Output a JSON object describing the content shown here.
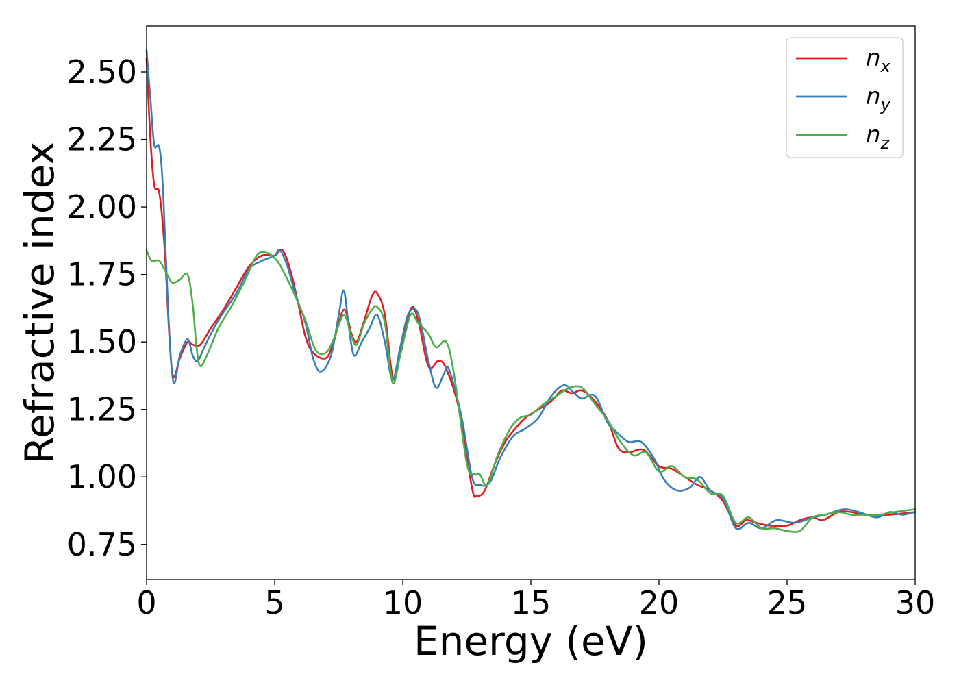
{
  "chart_data": {
    "type": "line",
    "xlabel": "Energy (eV)",
    "ylabel": "Refractive index",
    "xlim": [
      0,
      30
    ],
    "ylim": [
      0.62,
      2.67
    ],
    "xticks": [
      0,
      5,
      10,
      15,
      20,
      25,
      30
    ],
    "xtick_labels": [
      "0",
      "5",
      "10",
      "15",
      "20",
      "25",
      "30"
    ],
    "yticks": [
      0.75,
      1.0,
      1.25,
      1.5,
      1.75,
      2.0,
      2.25,
      2.5
    ],
    "ytick_labels": [
      "0.75",
      "1.00",
      "1.25",
      "1.50",
      "1.75",
      "2.00",
      "2.25",
      "2.50"
    ],
    "grid": false,
    "legend_position": "top-right",
    "series": [
      {
        "name": "n",
        "subscript": "x",
        "color": "#e41a1c",
        "points": [
          [
            0,
            2.55
          ],
          [
            0.15,
            2.25
          ],
          [
            0.3,
            2.08
          ],
          [
            0.5,
            2.05
          ],
          [
            0.7,
            1.85
          ],
          [
            0.9,
            1.5
          ],
          [
            1.05,
            1.37
          ],
          [
            1.3,
            1.44
          ],
          [
            1.6,
            1.5
          ],
          [
            1.8,
            1.49
          ],
          [
            2.1,
            1.49
          ],
          [
            2.5,
            1.55
          ],
          [
            3.0,
            1.62
          ],
          [
            3.5,
            1.7
          ],
          [
            4.0,
            1.78
          ],
          [
            4.5,
            1.82
          ],
          [
            5.0,
            1.82
          ],
          [
            5.3,
            1.84
          ],
          [
            5.6,
            1.77
          ],
          [
            5.9,
            1.65
          ],
          [
            6.2,
            1.52
          ],
          [
            6.5,
            1.46
          ],
          [
            7.0,
            1.44
          ],
          [
            7.3,
            1.5
          ],
          [
            7.7,
            1.62
          ],
          [
            8.0,
            1.53
          ],
          [
            8.2,
            1.5
          ],
          [
            8.5,
            1.58
          ],
          [
            8.8,
            1.67
          ],
          [
            9.0,
            1.68
          ],
          [
            9.3,
            1.6
          ],
          [
            9.6,
            1.37
          ],
          [
            9.8,
            1.42
          ],
          [
            10.3,
            1.62
          ],
          [
            10.6,
            1.58
          ],
          [
            11.0,
            1.41
          ],
          [
            11.4,
            1.43
          ],
          [
            11.7,
            1.4
          ],
          [
            12.2,
            1.25
          ],
          [
            12.7,
            0.96
          ],
          [
            12.9,
            0.93
          ],
          [
            13.2,
            0.95
          ],
          [
            13.6,
            1.05
          ],
          [
            14.0,
            1.13
          ],
          [
            14.4,
            1.18
          ],
          [
            14.8,
            1.22
          ],
          [
            15.3,
            1.25
          ],
          [
            15.8,
            1.28
          ],
          [
            16.2,
            1.32
          ],
          [
            16.6,
            1.31
          ],
          [
            17.0,
            1.32
          ],
          [
            17.5,
            1.28
          ],
          [
            18.0,
            1.21
          ],
          [
            18.4,
            1.11
          ],
          [
            18.8,
            1.09
          ],
          [
            19.4,
            1.1
          ],
          [
            20.0,
            1.04
          ],
          [
            20.5,
            1.03
          ],
          [
            21.0,
            1.0
          ],
          [
            21.5,
            0.97
          ],
          [
            22.0,
            0.95
          ],
          [
            22.5,
            0.91
          ],
          [
            23.0,
            0.82
          ],
          [
            23.4,
            0.84
          ],
          [
            23.8,
            0.83
          ],
          [
            24.3,
            0.82
          ],
          [
            25.0,
            0.82
          ],
          [
            25.5,
            0.84
          ],
          [
            26.0,
            0.85
          ],
          [
            26.4,
            0.84
          ],
          [
            27.0,
            0.87
          ],
          [
            27.5,
            0.87
          ],
          [
            28.0,
            0.86
          ],
          [
            29.0,
            0.86
          ],
          [
            30.0,
            0.87
          ]
        ]
      },
      {
        "name": "n",
        "subscript": "y",
        "color": "#377eb8",
        "points": [
          [
            0,
            2.58
          ],
          [
            0.15,
            2.4
          ],
          [
            0.3,
            2.23
          ],
          [
            0.5,
            2.22
          ],
          [
            0.65,
            2.05
          ],
          [
            0.85,
            1.6
          ],
          [
            1.05,
            1.35
          ],
          [
            1.3,
            1.45
          ],
          [
            1.6,
            1.51
          ],
          [
            1.8,
            1.45
          ],
          [
            2.0,
            1.43
          ],
          [
            2.3,
            1.49
          ],
          [
            2.8,
            1.58
          ],
          [
            3.5,
            1.68
          ],
          [
            4.0,
            1.77
          ],
          [
            4.5,
            1.8
          ],
          [
            5.0,
            1.82
          ],
          [
            5.2,
            1.84
          ],
          [
            5.5,
            1.78
          ],
          [
            5.8,
            1.68
          ],
          [
            6.2,
            1.57
          ],
          [
            6.5,
            1.44
          ],
          [
            6.8,
            1.39
          ],
          [
            7.2,
            1.45
          ],
          [
            7.5,
            1.6
          ],
          [
            7.7,
            1.69
          ],
          [
            7.9,
            1.55
          ],
          [
            8.1,
            1.45
          ],
          [
            8.4,
            1.5
          ],
          [
            8.7,
            1.55
          ],
          [
            9.0,
            1.6
          ],
          [
            9.3,
            1.5
          ],
          [
            9.6,
            1.36
          ],
          [
            9.9,
            1.48
          ],
          [
            10.2,
            1.6
          ],
          [
            10.5,
            1.62
          ],
          [
            10.7,
            1.57
          ],
          [
            11.0,
            1.43
          ],
          [
            11.3,
            1.33
          ],
          [
            11.6,
            1.38
          ],
          [
            11.8,
            1.4
          ],
          [
            12.3,
            1.22
          ],
          [
            12.7,
            1.0
          ],
          [
            13.0,
            0.97
          ],
          [
            13.4,
            0.98
          ],
          [
            13.8,
            1.07
          ],
          [
            14.3,
            1.15
          ],
          [
            14.8,
            1.18
          ],
          [
            15.3,
            1.22
          ],
          [
            15.8,
            1.3
          ],
          [
            16.3,
            1.34
          ],
          [
            16.7,
            1.31
          ],
          [
            17.0,
            1.29
          ],
          [
            17.5,
            1.3
          ],
          [
            18.0,
            1.2
          ],
          [
            18.3,
            1.17
          ],
          [
            18.8,
            1.13
          ],
          [
            19.3,
            1.13
          ],
          [
            19.8,
            1.07
          ],
          [
            20.2,
            0.99
          ],
          [
            20.7,
            0.95
          ],
          [
            21.2,
            0.96
          ],
          [
            21.6,
            1.0
          ],
          [
            22.0,
            0.95
          ],
          [
            22.5,
            0.92
          ],
          [
            23.0,
            0.81
          ],
          [
            23.5,
            0.83
          ],
          [
            24.0,
            0.81
          ],
          [
            24.6,
            0.84
          ],
          [
            25.3,
            0.83
          ],
          [
            26.0,
            0.85
          ],
          [
            26.5,
            0.86
          ],
          [
            27.2,
            0.88
          ],
          [
            27.8,
            0.87
          ],
          [
            28.5,
            0.85
          ],
          [
            29.0,
            0.87
          ],
          [
            29.5,
            0.86
          ],
          [
            30.0,
            0.87
          ]
        ]
      },
      {
        "name": "n",
        "subscript": "z",
        "color": "#4daf4a",
        "points": [
          [
            0,
            1.84
          ],
          [
            0.2,
            1.8
          ],
          [
            0.5,
            1.8
          ],
          [
            0.8,
            1.75
          ],
          [
            1.0,
            1.72
          ],
          [
            1.3,
            1.73
          ],
          [
            1.6,
            1.75
          ],
          [
            1.8,
            1.64
          ],
          [
            1.95,
            1.48
          ],
          [
            2.1,
            1.41
          ],
          [
            2.4,
            1.46
          ],
          [
            2.8,
            1.55
          ],
          [
            3.3,
            1.63
          ],
          [
            3.8,
            1.72
          ],
          [
            4.3,
            1.82
          ],
          [
            4.7,
            1.83
          ],
          [
            5.1,
            1.8
          ],
          [
            5.4,
            1.75
          ],
          [
            5.8,
            1.67
          ],
          [
            6.2,
            1.58
          ],
          [
            6.6,
            1.47
          ],
          [
            7.0,
            1.46
          ],
          [
            7.3,
            1.51
          ],
          [
            7.7,
            1.6
          ],
          [
            8.0,
            1.52
          ],
          [
            8.2,
            1.49
          ],
          [
            8.5,
            1.57
          ],
          [
            8.8,
            1.62
          ],
          [
            9.0,
            1.63
          ],
          [
            9.3,
            1.57
          ],
          [
            9.6,
            1.35
          ],
          [
            9.9,
            1.45
          ],
          [
            10.3,
            1.6
          ],
          [
            10.6,
            1.57
          ],
          [
            11.0,
            1.53
          ],
          [
            11.3,
            1.48
          ],
          [
            11.7,
            1.5
          ],
          [
            12.0,
            1.38
          ],
          [
            12.5,
            1.05
          ],
          [
            12.8,
            1.01
          ],
          [
            13.0,
            1.01
          ],
          [
            13.3,
            0.97
          ],
          [
            13.7,
            1.08
          ],
          [
            14.2,
            1.18
          ],
          [
            14.6,
            1.22
          ],
          [
            15.0,
            1.23
          ],
          [
            15.5,
            1.27
          ],
          [
            16.0,
            1.3
          ],
          [
            16.5,
            1.33
          ],
          [
            17.0,
            1.33
          ],
          [
            17.5,
            1.27
          ],
          [
            18.0,
            1.21
          ],
          [
            18.5,
            1.13
          ],
          [
            19.0,
            1.08
          ],
          [
            19.5,
            1.09
          ],
          [
            20.0,
            1.02
          ],
          [
            20.5,
            1.04
          ],
          [
            21.0,
            1.0
          ],
          [
            21.5,
            0.99
          ],
          [
            22.0,
            0.94
          ],
          [
            22.5,
            0.93
          ],
          [
            23.0,
            0.83
          ],
          [
            23.5,
            0.85
          ],
          [
            24.0,
            0.81
          ],
          [
            24.5,
            0.81
          ],
          [
            25.0,
            0.8
          ],
          [
            25.5,
            0.8
          ],
          [
            26.0,
            0.85
          ],
          [
            26.5,
            0.86
          ],
          [
            27.0,
            0.87
          ],
          [
            27.5,
            0.86
          ],
          [
            28.0,
            0.86
          ],
          [
            28.6,
            0.86
          ],
          [
            29.2,
            0.87
          ],
          [
            30.0,
            0.88
          ]
        ]
      }
    ]
  }
}
